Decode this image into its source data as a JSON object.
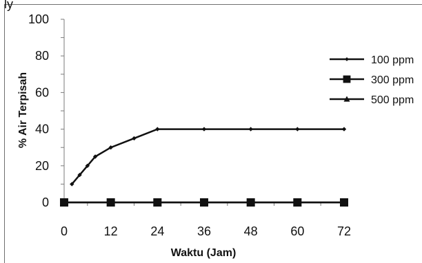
{
  "page_header_fragment": "ly",
  "chart_data": {
    "type": "line",
    "xlabel": "Waktu (Jam)",
    "ylabel": "% Air Terpisah",
    "xlim": [
      0,
      72
    ],
    "ylim": [
      0,
      100
    ],
    "xticks": [
      0,
      12,
      24,
      36,
      48,
      60,
      72
    ],
    "yticks": [
      0,
      20,
      40,
      60,
      80,
      100
    ],
    "grid": false,
    "legend_position": "right",
    "series": [
      {
        "name": "100 ppm",
        "marker": "diamond",
        "color": "#111111",
        "x": [
          2,
          4,
          6,
          8,
          12,
          18,
          24,
          36,
          48,
          60,
          72
        ],
        "y": [
          10,
          15,
          20,
          25,
          30,
          35,
          40,
          40,
          40,
          40,
          40
        ]
      },
      {
        "name": "300 ppm",
        "marker": "square",
        "color": "#111111",
        "x": [
          0,
          12,
          24,
          36,
          48,
          60,
          72
        ],
        "y": [
          0,
          0,
          0,
          0,
          0,
          0,
          0
        ]
      },
      {
        "name": "500 ppm",
        "marker": "triangle",
        "color": "#111111",
        "x": [
          0,
          12,
          24,
          36,
          48,
          60,
          72
        ],
        "y": [
          0,
          0,
          0,
          0,
          0,
          0,
          0
        ]
      }
    ]
  }
}
